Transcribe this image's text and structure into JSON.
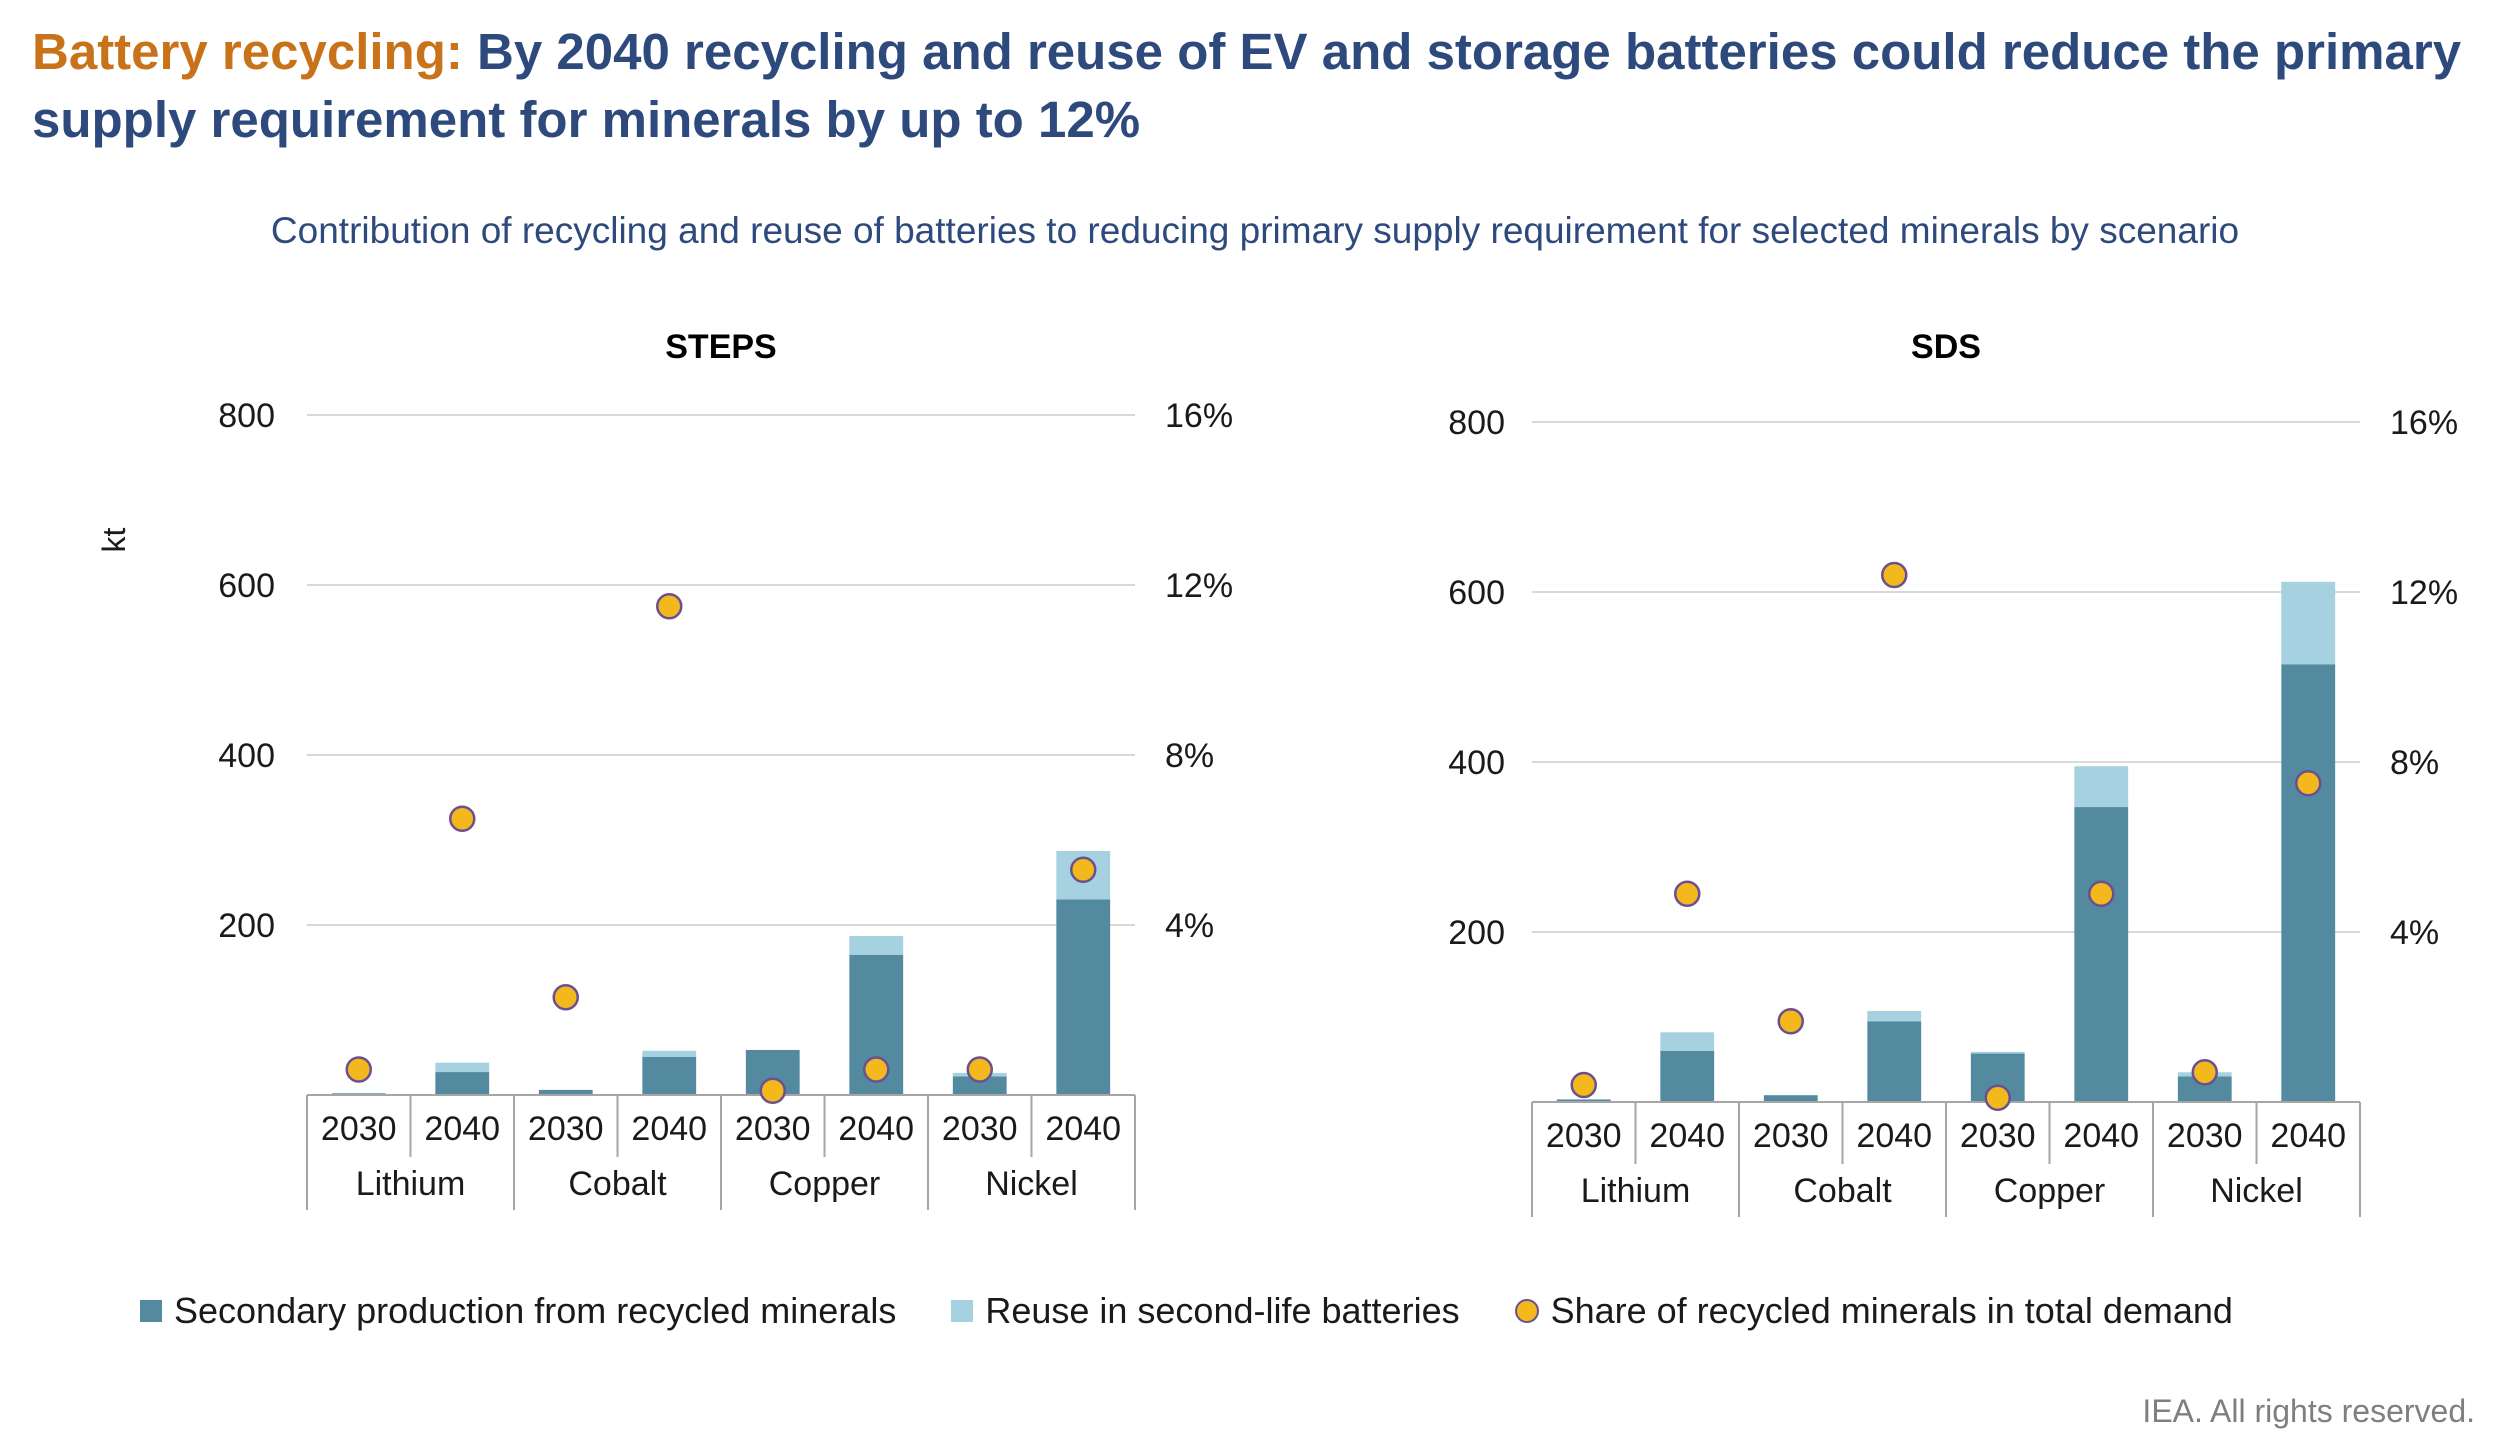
{
  "headline": {
    "lead": "Battery recycling:",
    "text": "By 2040 recycling and reuse of EV and storage batteries could reduce the primary supply requirement for minerals by up to 12%"
  },
  "subtitle": "Contribution of recycling and reuse of batteries to reducing primary supply requirement for selected minerals by scenario",
  "footer": "IEA. All rights reserved.",
  "legend": {
    "secondary": "Secondary production from recycled minerals",
    "reuse": "Reuse in second-life batteries",
    "share": "Share of recycled minerals in total demand"
  },
  "colors": {
    "secondary": "#548aa0",
    "reuse": "#a6d1e0",
    "share": "#f2b81c",
    "share_border": "#6a4f93",
    "grid": "#d9d9d9",
    "axis_text": "#1a1a1a"
  },
  "chart_data": [
    {
      "type": "bar",
      "title": "STEPS",
      "ylabel": "kt",
      "ylim": [
        0,
        800
      ],
      "y_ticks": [
        200,
        400,
        600,
        800
      ],
      "y2lim": [
        0,
        16
      ],
      "y2_ticks": [
        "4%",
        "8%",
        "12%",
        "16%"
      ],
      "groups": [
        "Lithium",
        "Cobalt",
        "Copper",
        "Nickel"
      ],
      "categories": [
        "2030",
        "2040",
        "2030",
        "2040",
        "2030",
        "2040",
        "2030",
        "2040"
      ],
      "series": [
        {
          "name": "Secondary production from recycled minerals",
          "values": [
            2,
            27,
            6,
            45,
            53,
            165,
            22,
            230
          ]
        },
        {
          "name": "Reuse in second-life batteries",
          "values": [
            0,
            11,
            0,
            7,
            0,
            22,
            4,
            57
          ]
        },
        {
          "name": "Share of recycled minerals in total demand",
          "axis": "secondary",
          "values": [
            0.6,
            6.5,
            2.3,
            11.5,
            0.1,
            0.6,
            0.6,
            5.3
          ]
        }
      ],
      "grid": true
    },
    {
      "type": "bar",
      "title": "SDS",
      "ylabel": "",
      "ylim": [
        0,
        800
      ],
      "y_ticks": [
        200,
        400,
        600,
        800
      ],
      "y2lim": [
        0,
        16
      ],
      "y2_ticks": [
        "4%",
        "8%",
        "12%",
        "16%"
      ],
      "groups": [
        "Lithium",
        "Cobalt",
        "Copper",
        "Nickel"
      ],
      "categories": [
        "2030",
        "2040",
        "2030",
        "2040",
        "2030",
        "2040",
        "2030",
        "2040"
      ],
      "series": [
        {
          "name": "Secondary production from recycled minerals",
          "values": [
            3,
            60,
            8,
            95,
            57,
            347,
            30,
            515
          ]
        },
        {
          "name": "Reuse in second-life batteries",
          "values": [
            0,
            22,
            0,
            12,
            2,
            48,
            5,
            97
          ]
        },
        {
          "name": "Share of recycled minerals in total demand",
          "axis": "secondary",
          "values": [
            0.4,
            4.9,
            1.9,
            12.4,
            0.1,
            4.9,
            0.7,
            7.5
          ]
        }
      ],
      "grid": true
    }
  ]
}
